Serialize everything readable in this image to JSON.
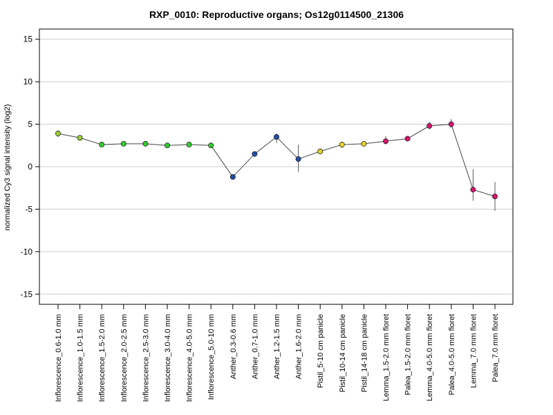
{
  "chart_data": {
    "type": "line",
    "title": "RXP_0010: Reproductive organs; Os12g0114500_21306",
    "ylabel": "normalized Cy3 signal intensity (log2)",
    "xlabel": "",
    "ylim": [
      -16.2,
      16.2
    ],
    "yticks": [
      -15,
      -10,
      -5,
      0,
      5,
      10,
      15
    ],
    "grid": true,
    "categories": [
      "Inflorescence_0.6-1.0 mm",
      "Inflorescence_1.0-1.5 mm",
      "Inflorescence_1.5-2.0 mm",
      "Inflorescence_2.0-2.5 mm",
      "Inflorescence_2.5-3.0 mm",
      "Inflorescence_3.0-4.0 mm",
      "Inflorescence_4.0-5.0 mm",
      "Inflorescence_5.0-10 mm",
      "Anther_0.3-0.6 mm",
      "Anther_0.7-1.0 mm",
      "Anther_1.2-1.5 mm",
      "Anther_1.6-2.0 mm",
      "Pistil_5-10 cm panicle",
      "Pistil_10-14 cm panicle",
      "Pistil_14-18 cm panicle",
      "Lemma_1.5-2.0 mm floret",
      "Palea_1.5-2.0 mm floret",
      "Lemma_4.0-5.0 mm floret",
      "Palea_4.0-5.0 mm floret",
      "Lemma_7.0 mm floret",
      "Palea_7.0 mm floret"
    ],
    "values": [
      3.9,
      3.4,
      2.6,
      2.7,
      2.7,
      2.5,
      2.6,
      2.5,
      -1.2,
      1.5,
      3.5,
      0.9,
      1.8,
      2.6,
      2.7,
      3.0,
      3.3,
      4.8,
      5.0,
      -2.7,
      -3.5
    ],
    "error_low": [
      3.5,
      3.2,
      2.5,
      2.6,
      2.6,
      2.4,
      2.5,
      2.4,
      -1.3,
      1.3,
      2.8,
      -0.6,
      1.5,
      2.2,
      2.4,
      2.6,
      3.0,
      4.4,
      4.6,
      -4.0,
      -5.2
    ],
    "error_high": [
      4.3,
      3.7,
      2.8,
      2.9,
      2.9,
      2.7,
      2.8,
      2.7,
      -1.0,
      1.7,
      3.9,
      2.6,
      2.1,
      2.9,
      3.0,
      3.6,
      3.6,
      5.3,
      5.6,
      -0.3,
      -1.8
    ],
    "point_colors": [
      "#9acd32",
      "#9acd32",
      "#32cd32",
      "#32cd32",
      "#32cd32",
      "#32cd32",
      "#32cd32",
      "#32cd32",
      "#1f4fa8",
      "#1f4fa8",
      "#1f4fa8",
      "#1f4fa8",
      "#e8d22a",
      "#e8d22a",
      "#e8d22a",
      "#d4166e",
      "#d4166e",
      "#d4166e",
      "#d4166e",
      "#d4166e",
      "#d4166e"
    ],
    "line_color": "#444444",
    "grid_color": "#cccccc"
  }
}
